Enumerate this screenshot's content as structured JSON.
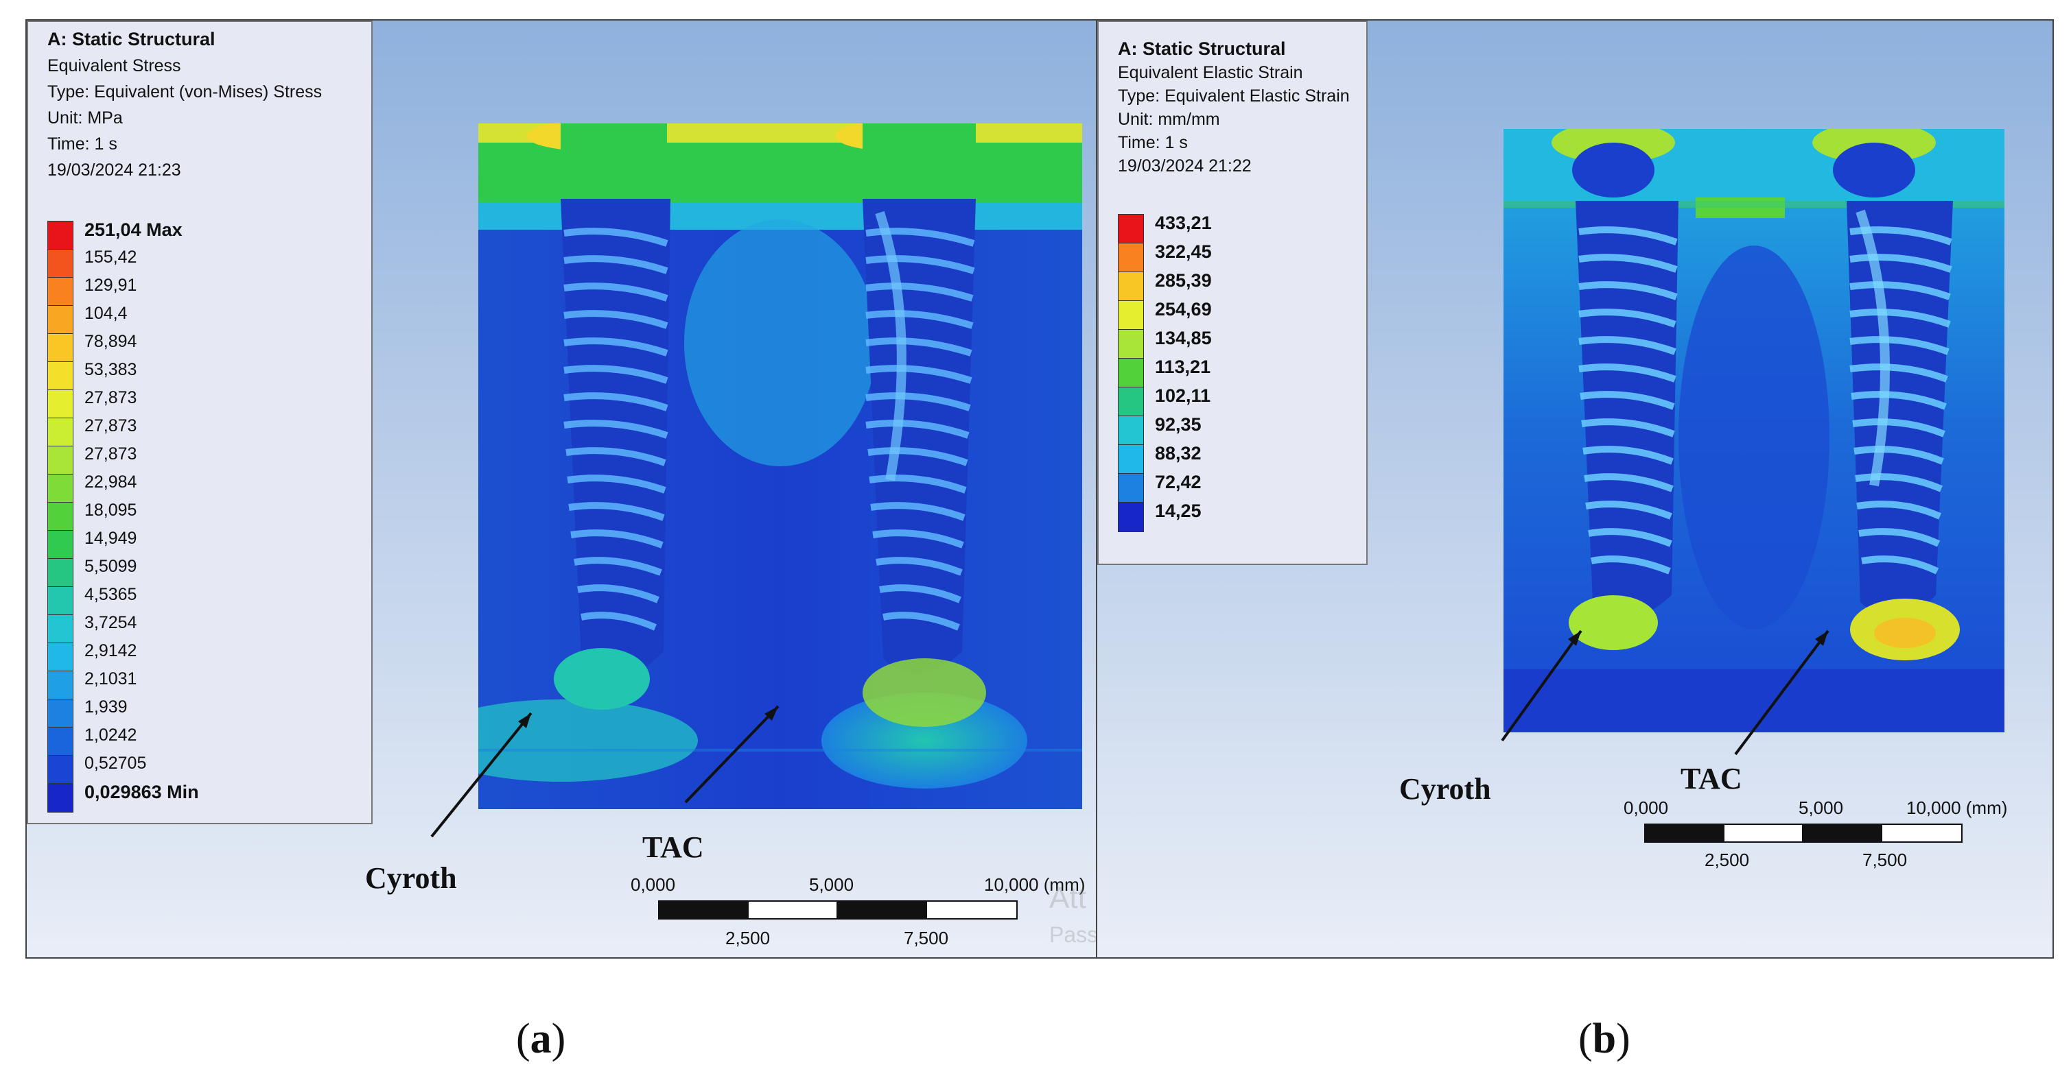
{
  "panel_a": {
    "info": {
      "title": "A: Static Structural",
      "line1": "Equivalent Stress",
      "line2": "Type: Equivalent (von-Mises) Stress",
      "line3": "Unit: MPa",
      "line4": "Time: 1 s",
      "line5": "19/03/2024 21:23"
    },
    "legend": [
      {
        "label": "251,04 Max",
        "color": "#e8141a",
        "bold": true
      },
      {
        "label": "155,42",
        "color": "#f3531c"
      },
      {
        "label": "129,91",
        "color": "#f7821f"
      },
      {
        "label": "104,4",
        "color": "#f9a721"
      },
      {
        "label": "78,894",
        "color": "#f8c725"
      },
      {
        "label": "53,383",
        "color": "#f2e02a"
      },
      {
        "label": "27,873",
        "color": "#e5ee2f"
      },
      {
        "label": "27,873",
        "color": "#cbee33"
      },
      {
        "label": "27,873",
        "color": "#a8e536"
      },
      {
        "label": "22,984",
        "color": "#7fdb38"
      },
      {
        "label": "18,095",
        "color": "#52d13b"
      },
      {
        "label": "14,949",
        "color": "#2fca4f"
      },
      {
        "label": "5,5099",
        "color": "#24c682"
      },
      {
        "label": "4,5365",
        "color": "#22c7ad"
      },
      {
        "label": "3,7254",
        "color": "#22c5d1"
      },
      {
        "label": "2,9142",
        "color": "#20b8e6"
      },
      {
        "label": "2,1031",
        "color": "#1e9fe6"
      },
      {
        "label": "1,939",
        "color": "#1c82e2"
      },
      {
        "label": "1,0242",
        "color": "#1a64dc"
      },
      {
        "label": "0,52705",
        "color": "#1a44d4"
      },
      {
        "label": "0,029863 Min",
        "color": "#1626c9",
        "bold": true
      }
    ],
    "label_cyroth": "Cyroth",
    "label_tac": "TAC",
    "scale": {
      "t0": "0,000",
      "t1": "5,000",
      "t2": "10,000 (mm)",
      "b1": "2,500",
      "b2": "7,500"
    },
    "watermark1": "Att",
    "watermark2": "Pass"
  },
  "panel_b": {
    "info": {
      "title": "A: Static Structural",
      "line1": "Equivalent Elastic Strain",
      "line2": "Type: Equivalent Elastic Strain",
      "line3": "Unit: mm/mm",
      "line4": "Time: 1 s",
      "line5": "19/03/2024 21:22"
    },
    "legend": [
      {
        "label": "433,21",
        "color": "#e8141a",
        "bold": true
      },
      {
        "label": "322,45",
        "color": "#f7821f",
        "bold": true
      },
      {
        "label": "285,39",
        "color": "#f8c725",
        "bold": true
      },
      {
        "label": "254,69",
        "color": "#e5ee2f",
        "bold": true
      },
      {
        "label": "134,85",
        "color": "#a8e536",
        "bold": true
      },
      {
        "label": "113,21",
        "color": "#52d13b",
        "bold": true
      },
      {
        "label": "102,11",
        "color": "#24c682",
        "bold": true
      },
      {
        "label": "92,35",
        "color": "#22c5d1",
        "bold": true
      },
      {
        "label": "88,32",
        "color": "#20b8e6",
        "bold": true
      },
      {
        "label": "72,42",
        "color": "#1c82e2",
        "bold": true
      },
      {
        "label": "14,25",
        "color": "#1626c9",
        "bold": true
      }
    ],
    "label_cyroth": "Cyroth",
    "label_tac": "TAC",
    "scale": {
      "t0": "0,000",
      "t1": "5,000",
      "t2": "10,000 (mm)",
      "b1": "2,500",
      "b2": "7,500"
    }
  },
  "captions": {
    "a": "a",
    "b": "b"
  }
}
